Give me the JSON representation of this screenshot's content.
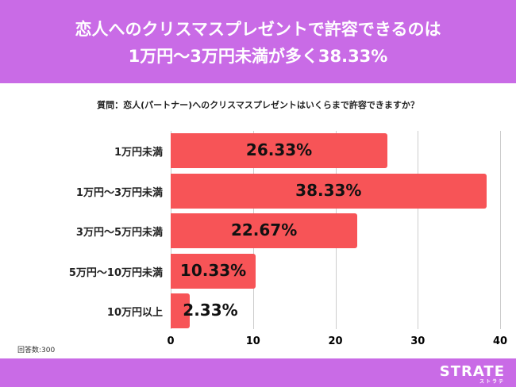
{
  "title": {
    "line1": "恋人へのクリスマスプレゼントで許容できるのは",
    "line2": "1万円〜3万円未満が多く38.33%"
  },
  "question": "質問：恋人(パートナー)へのクリスマスプレゼントはいくらまで許容できますか？",
  "respondents": "回答数:300",
  "brand": {
    "name": "STRATE",
    "sub": "ストラテ"
  },
  "colors": {
    "accent": "#C96BE6",
    "bar": "#F75457"
  },
  "chart_data": {
    "type": "bar",
    "orientation": "horizontal",
    "categories": [
      "1万円未満",
      "1万円〜3万円未満",
      "3万円〜5万円未満",
      "5万円〜10万円未満",
      "10万円以上"
    ],
    "values": [
      26.33,
      38.33,
      22.67,
      10.33,
      2.33
    ],
    "labels": [
      "26.33%",
      "38.33%",
      "22.67%",
      "10.33%",
      "2.33%"
    ],
    "xlim": [
      0,
      40
    ],
    "xticks": [
      "0",
      "10",
      "20",
      "30",
      "40"
    ],
    "grid": true
  }
}
